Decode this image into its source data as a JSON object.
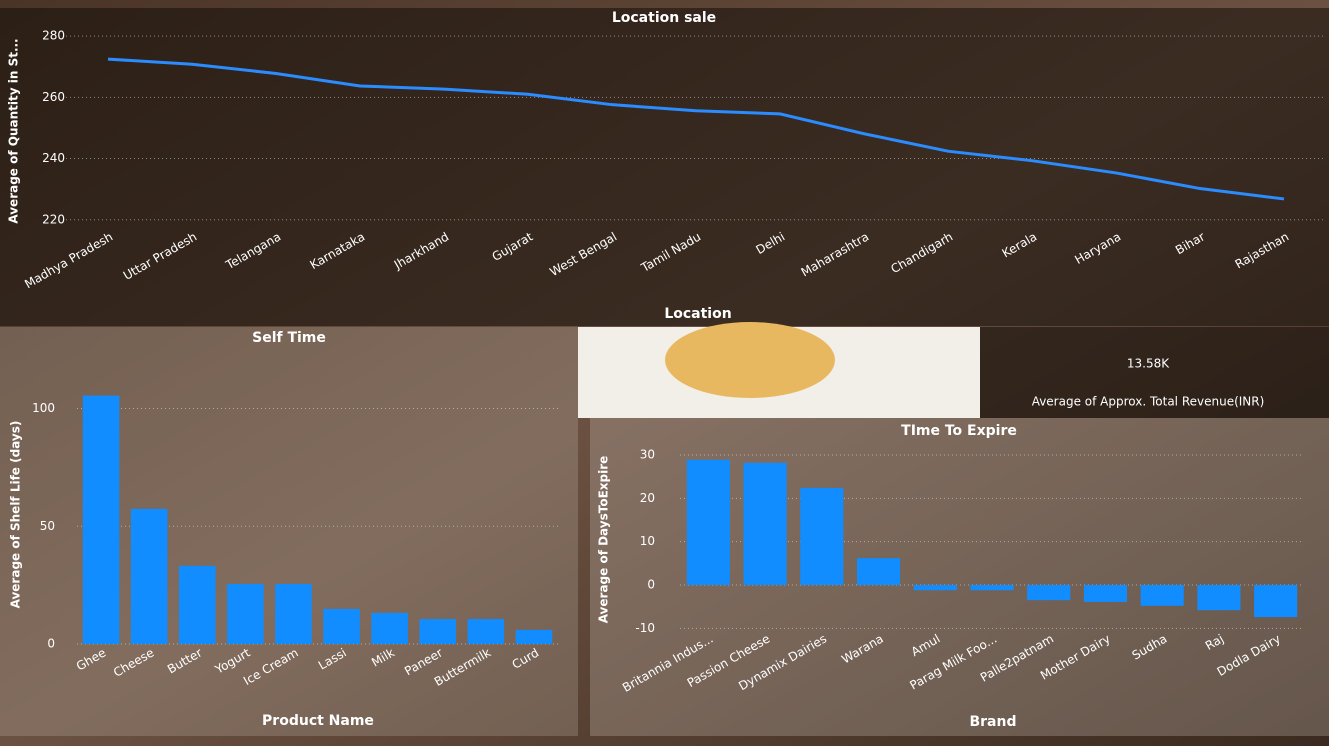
{
  "chart_data": [
    {
      "type": "line",
      "title": "Location sale",
      "x_label": "Location",
      "y_label": "Average of Quantity in St...",
      "categories": [
        "Madhya Pradesh",
        "Uttar Pradesh",
        "Telangana",
        "Karnataka",
        "Jharkhand",
        "Gujarat",
        "West Bengal",
        "Tamil Nadu",
        "Delhi",
        "Maharashtra",
        "Chandigarh",
        "Kerala",
        "Haryana",
        "Bihar",
        "Rajasthan"
      ],
      "values": [
        272.5,
        270.8,
        267.8,
        263.7,
        262.7,
        261,
        257.6,
        255.6,
        254.6,
        248.1,
        242.4,
        239.3,
        235.3,
        230.2,
        226.8
      ],
      "color": "#2b8cff",
      "ylim": [
        216,
        282
      ],
      "yticks": [
        220,
        240,
        260,
        280
      ],
      "grid": true
    },
    {
      "type": "bar",
      "title": "Self Time",
      "x_label": "Product Name",
      "y_label": "Average of Shelf Life (days)",
      "categories": [
        "Ghee",
        "Cheese",
        "Butter",
        "Yogurt",
        "Ice Cream",
        "Lassi",
        "Milk",
        "Paneer",
        "Buttermilk",
        "Curd"
      ],
      "values": [
        105.5,
        57.4,
        33.2,
        25.5,
        25.5,
        14.9,
        13.2,
        10.6,
        10.6,
        6
      ],
      "color": "#118dff",
      "ylim": [
        0,
        110
      ],
      "yticks": [
        0,
        50,
        100
      ],
      "grid": true
    },
    {
      "type": "bar",
      "title": "TIme To Expire",
      "x_label": "Brand",
      "y_label": "Average of DaysToExpire",
      "categories": [
        "Britannia Indus...",
        "Passion Cheese",
        "Dynamix Dairies",
        "Warana",
        "Amul",
        "Parag Milk Foo...",
        "Palle2patnam",
        "Mother Dairy",
        "Sudha",
        "Raj",
        "Dodla Dairy"
      ],
      "values": [
        28.9,
        28.2,
        22.4,
        6.2,
        -1.2,
        -1.2,
        -3.5,
        -3.9,
        -4.8,
        -5.8,
        -7.4
      ],
      "color": "#118dff",
      "ylim": [
        -12,
        33
      ],
      "yticks": [
        -10,
        0,
        10,
        20,
        30
      ],
      "grid": true
    },
    {
      "type": "card",
      "title": "Average of Approx. Total Revenue(INR)",
      "values": [
        13580
      ],
      "value_labels": [
        "13.58K"
      ]
    }
  ]
}
